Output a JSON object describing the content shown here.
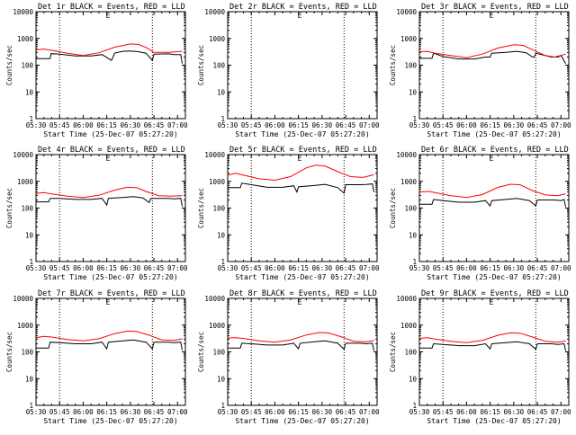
{
  "chart_data": {
    "type": "line",
    "layout": "3x3 grid",
    "x_tick_labels": [
      "05:30",
      "05:45",
      "06:00",
      "06:15",
      "06:30",
      "06:45",
      "07:00"
    ],
    "x_tick_minutes": [
      0,
      15,
      30,
      45,
      60,
      75,
      90
    ],
    "xlim_minutes": [
      0,
      95
    ],
    "xlabel": "Start Time (25-Dec-07 05:27:20)",
    "ylabel": "Counts/sec",
    "y_scale": "log",
    "ylim": [
      1,
      10000
    ],
    "y_tick_labels": [
      "1",
      "10",
      "100",
      "1000",
      "10000"
    ],
    "y_ticks": [
      1,
      10,
      100,
      1000,
      10000
    ],
    "vertical_dotted_lines_minutes": [
      15,
      74
    ],
    "marker_label": "E",
    "series_colors": {
      "events": "#000000",
      "lld": "#ff0000"
    },
    "panels": [
      {
        "title": "Det 1r BLACK = Events, RED = LLD",
        "has_data": true,
        "events": [
          [
            0,
            175
          ],
          [
            6,
            175
          ],
          [
            9,
            175
          ],
          [
            9.5,
            270
          ],
          [
            15,
            260
          ],
          [
            25,
            220
          ],
          [
            35,
            220
          ],
          [
            42,
            250
          ],
          [
            48,
            150
          ],
          [
            50,
            280
          ],
          [
            55,
            330
          ],
          [
            60,
            340
          ],
          [
            65,
            320
          ],
          [
            70,
            280
          ],
          [
            74,
            150
          ],
          [
            75,
            260
          ],
          [
            84,
            265
          ],
          [
            88,
            250
          ],
          [
            92,
            250
          ],
          [
            93,
            115
          ]
        ],
        "lld": [
          [
            0,
            380
          ],
          [
            5,
            400
          ],
          [
            10,
            360
          ],
          [
            20,
            280
          ],
          [
            30,
            230
          ],
          [
            40,
            290
          ],
          [
            50,
            470
          ],
          [
            60,
            620
          ],
          [
            65,
            600
          ],
          [
            70,
            460
          ],
          [
            75,
            300
          ],
          [
            85,
            300
          ],
          [
            90,
            320
          ],
          [
            93,
            330
          ]
        ]
      },
      {
        "title": "Det 2r BLACK = Events, RED = LLD",
        "has_data": false,
        "events": [],
        "lld": []
      },
      {
        "title": "Det 3r BLACK = Events, RED = LLD",
        "has_data": true,
        "events": [
          [
            0,
            180
          ],
          [
            8,
            180
          ],
          [
            9,
            280
          ],
          [
            15,
            210
          ],
          [
            25,
            170
          ],
          [
            35,
            170
          ],
          [
            42,
            200
          ],
          [
            45,
            200
          ],
          [
            46,
            280
          ],
          [
            55,
            300
          ],
          [
            62,
            330
          ],
          [
            68,
            290
          ],
          [
            72,
            200
          ],
          [
            73,
            200
          ],
          [
            74,
            280
          ],
          [
            84,
            200
          ],
          [
            86,
            200
          ],
          [
            88,
            200
          ],
          [
            90,
            230
          ],
          [
            93,
            115
          ]
        ],
        "lld": [
          [
            0,
            320
          ],
          [
            5,
            330
          ],
          [
            10,
            280
          ],
          [
            20,
            230
          ],
          [
            30,
            190
          ],
          [
            40,
            260
          ],
          [
            50,
            440
          ],
          [
            60,
            580
          ],
          [
            66,
            550
          ],
          [
            72,
            380
          ],
          [
            80,
            230
          ],
          [
            86,
            200
          ],
          [
            92,
            250
          ],
          [
            93,
            260
          ]
        ]
      },
      {
        "title": "Det 4r BLACK = Events, RED = LLD",
        "has_data": true,
        "events": [
          [
            0,
            170
          ],
          [
            8,
            170
          ],
          [
            9,
            230
          ],
          [
            15,
            230
          ],
          [
            25,
            210
          ],
          [
            35,
            210
          ],
          [
            42,
            230
          ],
          [
            45,
            130
          ],
          [
            46,
            230
          ],
          [
            55,
            250
          ],
          [
            62,
            270
          ],
          [
            68,
            240
          ],
          [
            72,
            160
          ],
          [
            73,
            230
          ],
          [
            84,
            230
          ],
          [
            88,
            220
          ],
          [
            92,
            230
          ],
          [
            93,
            115
          ]
        ],
        "lld": [
          [
            0,
            350
          ],
          [
            5,
            380
          ],
          [
            10,
            340
          ],
          [
            20,
            280
          ],
          [
            30,
            250
          ],
          [
            40,
            300
          ],
          [
            50,
            470
          ],
          [
            58,
            600
          ],
          [
            64,
            580
          ],
          [
            70,
            420
          ],
          [
            78,
            290
          ],
          [
            86,
            280
          ],
          [
            92,
            290
          ],
          [
            93,
            300
          ]
        ]
      },
      {
        "title": "Det 5r BLACK = Events, RED = LLD",
        "has_data": true,
        "events": [
          [
            0,
            580
          ],
          [
            8,
            580
          ],
          [
            9,
            850
          ],
          [
            15,
            750
          ],
          [
            25,
            600
          ],
          [
            35,
            600
          ],
          [
            42,
            680
          ],
          [
            44,
            400
          ],
          [
            45,
            620
          ],
          [
            55,
            700
          ],
          [
            62,
            770
          ],
          [
            70,
            580
          ],
          [
            74,
            360
          ],
          [
            75,
            750
          ],
          [
            84,
            750
          ],
          [
            88,
            760
          ],
          [
            92,
            800
          ],
          [
            93,
            400
          ]
        ],
        "lld": [
          [
            0,
            1700
          ],
          [
            5,
            2000
          ],
          [
            10,
            1700
          ],
          [
            20,
            1250
          ],
          [
            30,
            1100
          ],
          [
            40,
            1500
          ],
          [
            50,
            3200
          ],
          [
            56,
            4000
          ],
          [
            62,
            3700
          ],
          [
            70,
            2300
          ],
          [
            78,
            1500
          ],
          [
            86,
            1400
          ],
          [
            92,
            1700
          ],
          [
            93,
            1800
          ]
        ]
      },
      {
        "title": "Det 6r BLACK = Events, RED = LLD",
        "has_data": true,
        "events": [
          [
            0,
            140
          ],
          [
            8,
            140
          ],
          [
            9,
            210
          ],
          [
            15,
            190
          ],
          [
            25,
            165
          ],
          [
            35,
            165
          ],
          [
            42,
            190
          ],
          [
            45,
            120
          ],
          [
            46,
            190
          ],
          [
            55,
            210
          ],
          [
            62,
            230
          ],
          [
            70,
            190
          ],
          [
            74,
            120
          ],
          [
            75,
            200
          ],
          [
            86,
            200
          ],
          [
            90,
            190
          ],
          [
            92,
            210
          ],
          [
            93,
            110
          ]
        ],
        "lld": [
          [
            0,
            400
          ],
          [
            6,
            420
          ],
          [
            12,
            360
          ],
          [
            20,
            290
          ],
          [
            30,
            250
          ],
          [
            40,
            320
          ],
          [
            50,
            600
          ],
          [
            58,
            780
          ],
          [
            64,
            740
          ],
          [
            72,
            450
          ],
          [
            80,
            310
          ],
          [
            88,
            290
          ],
          [
            92,
            330
          ],
          [
            93,
            340
          ]
        ]
      },
      {
        "title": "Det 7r BLACK = Events, RED = LLD",
        "has_data": true,
        "events": [
          [
            0,
            140
          ],
          [
            8,
            140
          ],
          [
            9,
            230
          ],
          [
            15,
            220
          ],
          [
            25,
            200
          ],
          [
            35,
            200
          ],
          [
            42,
            230
          ],
          [
            45,
            130
          ],
          [
            46,
            230
          ],
          [
            55,
            260
          ],
          [
            62,
            280
          ],
          [
            70,
            230
          ],
          [
            74,
            130
          ],
          [
            75,
            230
          ],
          [
            84,
            230
          ],
          [
            88,
            220
          ],
          [
            92,
            230
          ],
          [
            93,
            115
          ]
        ],
        "lld": [
          [
            0,
            340
          ],
          [
            5,
            380
          ],
          [
            10,
            360
          ],
          [
            20,
            290
          ],
          [
            30,
            260
          ],
          [
            40,
            310
          ],
          [
            50,
            480
          ],
          [
            58,
            600
          ],
          [
            64,
            580
          ],
          [
            72,
            420
          ],
          [
            80,
            280
          ],
          [
            88,
            270
          ],
          [
            92,
            300
          ],
          [
            93,
            310
          ]
        ]
      },
      {
        "title": "Det 8r BLACK = Events, RED = LLD",
        "has_data": true,
        "events": [
          [
            0,
            140
          ],
          [
            8,
            140
          ],
          [
            9,
            210
          ],
          [
            15,
            200
          ],
          [
            25,
            180
          ],
          [
            35,
            180
          ],
          [
            42,
            210
          ],
          [
            45,
            130
          ],
          [
            46,
            210
          ],
          [
            55,
            240
          ],
          [
            62,
            260
          ],
          [
            70,
            210
          ],
          [
            74,
            125
          ],
          [
            75,
            210
          ],
          [
            84,
            210
          ],
          [
            88,
            200
          ],
          [
            92,
            210
          ],
          [
            93,
            110
          ]
        ],
        "lld": [
          [
            0,
            330
          ],
          [
            5,
            340
          ],
          [
            10,
            320
          ],
          [
            20,
            260
          ],
          [
            30,
            230
          ],
          [
            40,
            280
          ],
          [
            50,
            430
          ],
          [
            58,
            530
          ],
          [
            64,
            510
          ],
          [
            72,
            370
          ],
          [
            80,
            250
          ],
          [
            88,
            240
          ],
          [
            92,
            260
          ],
          [
            93,
            270
          ]
        ]
      },
      {
        "title": "Det 9r BLACK = Events, RED = LLD",
        "has_data": true,
        "events": [
          [
            0,
            140
          ],
          [
            8,
            140
          ],
          [
            9,
            200
          ],
          [
            15,
            190
          ],
          [
            25,
            170
          ],
          [
            35,
            170
          ],
          [
            42,
            200
          ],
          [
            45,
            130
          ],
          [
            46,
            200
          ],
          [
            55,
            220
          ],
          [
            62,
            240
          ],
          [
            70,
            200
          ],
          [
            74,
            125
          ],
          [
            75,
            200
          ],
          [
            84,
            200
          ],
          [
            88,
            190
          ],
          [
            92,
            200
          ],
          [
            93,
            110
          ]
        ],
        "lld": [
          [
            0,
            320
          ],
          [
            5,
            340
          ],
          [
            10,
            300
          ],
          [
            20,
            250
          ],
          [
            30,
            220
          ],
          [
            40,
            270
          ],
          [
            50,
            420
          ],
          [
            58,
            520
          ],
          [
            64,
            500
          ],
          [
            72,
            360
          ],
          [
            80,
            250
          ],
          [
            88,
            230
          ],
          [
            92,
            250
          ],
          [
            93,
            260
          ]
        ]
      }
    ]
  }
}
